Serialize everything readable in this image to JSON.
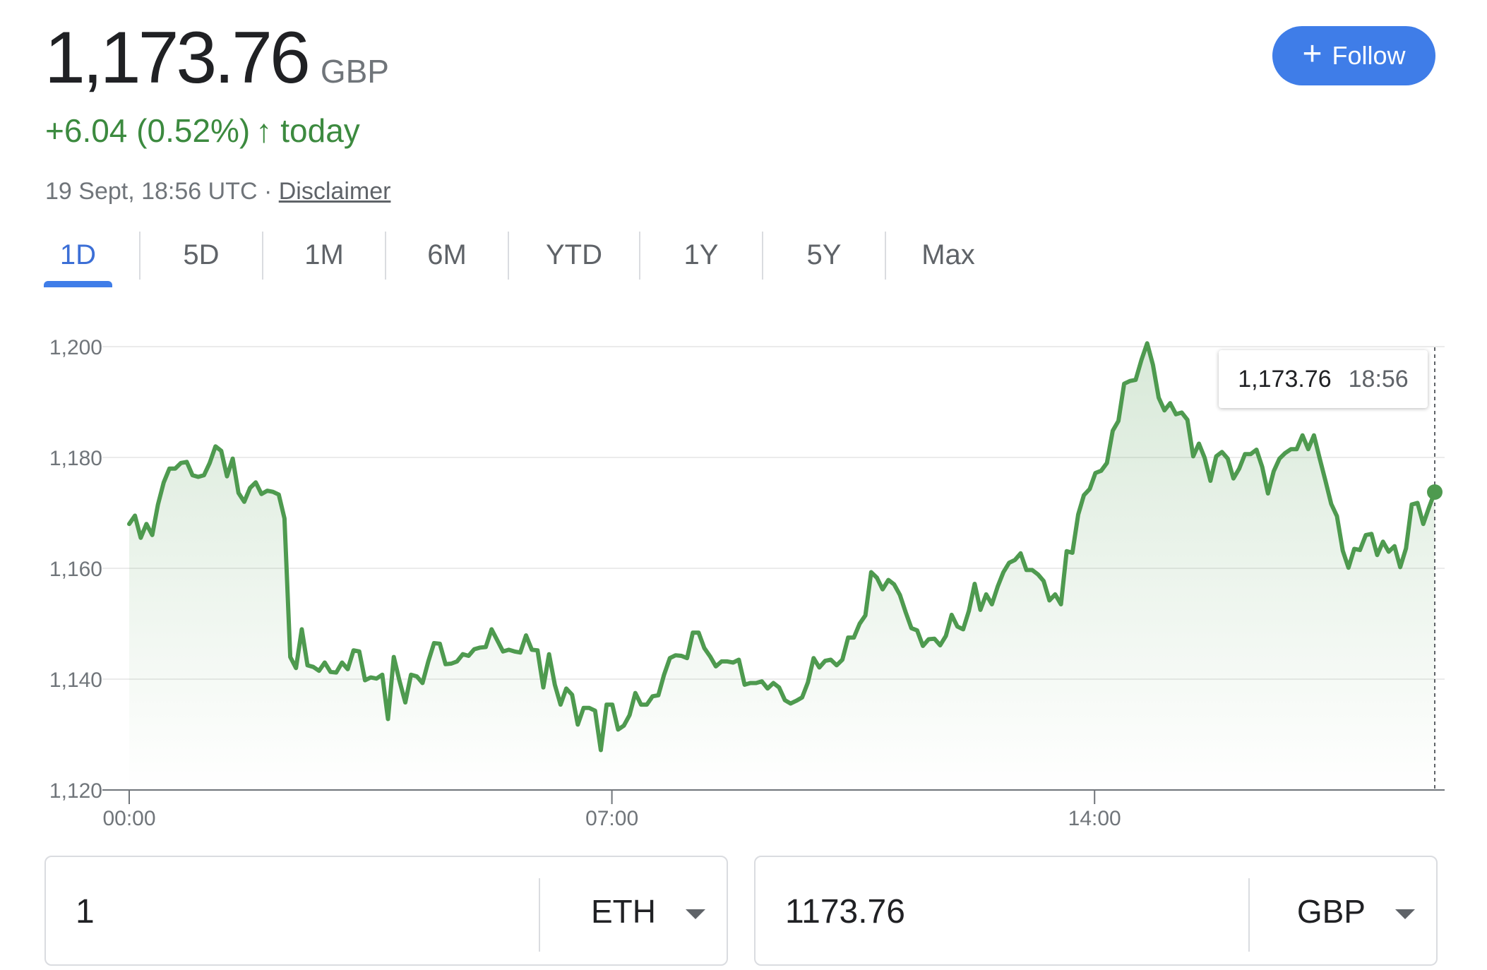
{
  "header": {
    "price": "1,173.76",
    "currency": "GBP",
    "change": "+6.04 (0.52%)",
    "change_arrow": "↑",
    "change_period": "today",
    "timestamp": "19 Sept, 18:56 UTC",
    "separator": "·",
    "disclaimer": "Disclaimer"
  },
  "follow_button": {
    "icon": "plus-icon",
    "label": "Follow"
  },
  "tabs": [
    {
      "label": "1D",
      "active": true
    },
    {
      "label": "5D"
    },
    {
      "label": "1M"
    },
    {
      "label": "6M"
    },
    {
      "label": "YTD"
    },
    {
      "label": "1Y"
    },
    {
      "label": "5Y"
    },
    {
      "label": "Max"
    }
  ],
  "tooltip": {
    "value": "1,173.76",
    "time": "18:56"
  },
  "colors": {
    "line": "#4e9a4f",
    "accent": "#3f7de8",
    "positive": "#3c8a3f"
  },
  "chart_data": {
    "type": "area",
    "title": "",
    "xlabel": "",
    "ylabel": "",
    "x_ticks": [
      "00:00",
      "07:00",
      "14:00"
    ],
    "y_ticks": [
      "1,120",
      "1,140",
      "1,160",
      "1,180",
      "1,200"
    ],
    "ylim": [
      1120,
      1200
    ],
    "grid": true,
    "series": [
      {
        "values": [
          1168,
          1169.5,
          1165.5,
          1168,
          1166,
          1171.5,
          1175.5,
          1178,
          1178,
          1179,
          1179.2,
          1176.8,
          1176.5,
          1176.8,
          1179,
          1182,
          1181.2,
          1176.6,
          1179.8,
          1173.6,
          1172,
          1174.5,
          1175.5,
          1173.4,
          1174,
          1173.8,
          1173.3,
          1169,
          1144,
          1142,
          1149,
          1142.5,
          1142.2,
          1141.5,
          1143,
          1141.3,
          1141.2,
          1143,
          1141.8,
          1145.2,
          1145,
          1139.8,
          1140.3,
          1140.1,
          1140.8,
          1132.8,
          1144,
          1139.7,
          1135.8,
          1140.8,
          1140.5,
          1139.3,
          1143.2,
          1146.5,
          1146.4,
          1142.7,
          1142.8,
          1143.2,
          1144.5,
          1144.2,
          1145.4,
          1145.7,
          1145.8,
          1149,
          1147,
          1145,
          1145.3,
          1145,
          1144.8,
          1147.9,
          1145.3,
          1145.2,
          1138.5,
          1144.5,
          1139,
          1135.4,
          1138.3,
          1137.2,
          1131.8,
          1134.8,
          1134.8,
          1134.3,
          1127.2,
          1135.4,
          1135.4,
          1130.9,
          1131.6,
          1133.5,
          1137.5,
          1135.4,
          1135.4,
          1136.9,
          1137.1,
          1140.8,
          1143.8,
          1144.3,
          1144.2,
          1143.8,
          1148.4,
          1148.4,
          1145.6,
          1144.1,
          1142.3,
          1143.2,
          1143.2,
          1143,
          1143.5,
          1139,
          1139.3,
          1139.3,
          1139.6,
          1138.3,
          1139.3,
          1138.5,
          1136.2,
          1135.6,
          1136.1,
          1136.7,
          1139.4,
          1143.8,
          1142.1,
          1143.3,
          1143.5,
          1142.5,
          1143.5,
          1147.5,
          1147.5,
          1150,
          1151.5,
          1159.3,
          1158.3,
          1156.2,
          1157.9,
          1157.1,
          1155.2,
          1152.1,
          1149.2,
          1148.8,
          1146,
          1147.2,
          1147.3,
          1146.1,
          1147.8,
          1151.6,
          1149.5,
          1149,
          1152.3,
          1157.2,
          1152.5,
          1155.3,
          1153.5,
          1156.7,
          1159.3,
          1161,
          1161.5,
          1162.7,
          1159.7,
          1159.7,
          1158.9,
          1157.7,
          1154.2,
          1155.3,
          1153.5,
          1163.1,
          1162.8,
          1169.7,
          1173.2,
          1174.3,
          1177.2,
          1177.6,
          1179,
          1184.8,
          1186.6,
          1193.3,
          1193.8,
          1194,
          1197.6,
          1200.6,
          1196.7,
          1190.8,
          1188.5,
          1189.8,
          1187.8,
          1188.1,
          1186.8,
          1180.2,
          1182.5,
          1179.9,
          1175.8,
          1180.2,
          1181,
          1179.8,
          1176.2,
          1178,
          1180.6,
          1180.6,
          1181.4,
          1178.3,
          1173.5,
          1177.5,
          1179.8,
          1180.8,
          1181.5,
          1181.5,
          1184,
          1181.5,
          1184,
          1179.8,
          1175.8,
          1171.6,
          1169.4,
          1163.2,
          1160.1,
          1163.5,
          1163.3,
          1166,
          1166.2,
          1162.4,
          1164.8,
          1163,
          1164,
          1160.2,
          1163.6,
          1171.5,
          1171.8,
          1168,
          1171,
          1173.76
        ]
      }
    ]
  }
}
